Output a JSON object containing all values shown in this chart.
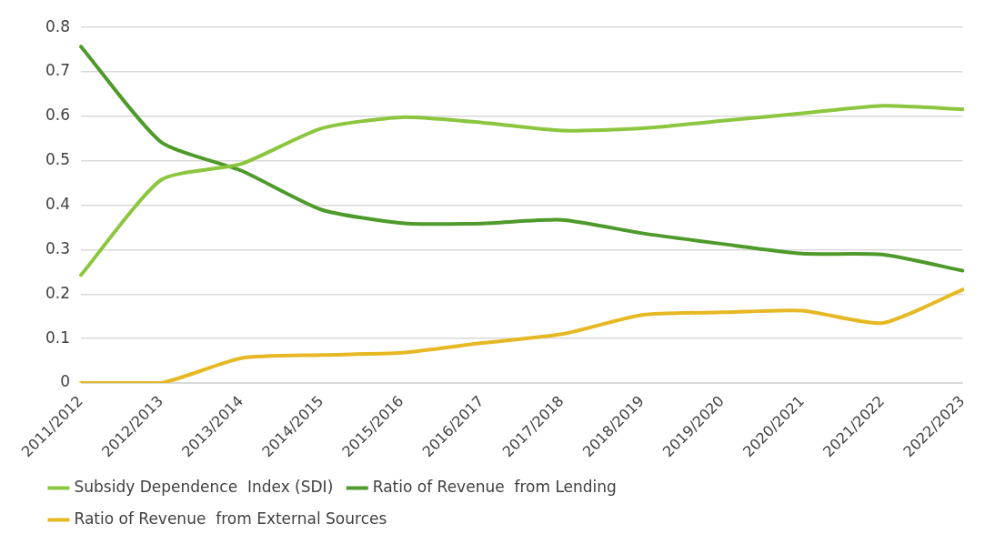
{
  "chart_data": {
    "type": "line",
    "categories": [
      "2011/2012",
      "2012/2013",
      "2013/2014",
      "2014/2015",
      "2015/2016",
      "2016/2017",
      "2017/2018",
      "2018/2019",
      "2019/2020",
      "2020/2021",
      "2021/2022",
      "2022/2023"
    ],
    "series": [
      {
        "name": "Subsidy Dependence  Index (SDI)",
        "color": "#8cc63e",
        "values": [
          0.243,
          0.457,
          0.493,
          0.573,
          0.598,
          0.586,
          0.568,
          0.573,
          0.59,
          0.607,
          0.624,
          0.616
        ]
      },
      {
        "name": "Ratio of Revenue  from Lending",
        "color": "#4e9a2b",
        "values": [
          0.757,
          0.542,
          0.478,
          0.39,
          0.36,
          0.359,
          0.367,
          0.337,
          0.313,
          0.291,
          0.289,
          0.253
        ]
      },
      {
        "name": "Ratio of Revenue  from External Sources",
        "color": "#e6b823",
        "values": [
          0,
          0,
          0.056,
          0.063,
          0.068,
          0.09,
          0.11,
          0.153,
          0.159,
          0.163,
          0.135,
          0.21
        ]
      }
    ],
    "ylim": [
      0,
      0.8
    ],
    "yticks": [
      0,
      0.1,
      0.2,
      0.3,
      0.4,
      0.5,
      0.6,
      0.7,
      0.8
    ],
    "grid": "y",
    "legend": "bottom",
    "marker": "none",
    "line_style": "solid"
  }
}
